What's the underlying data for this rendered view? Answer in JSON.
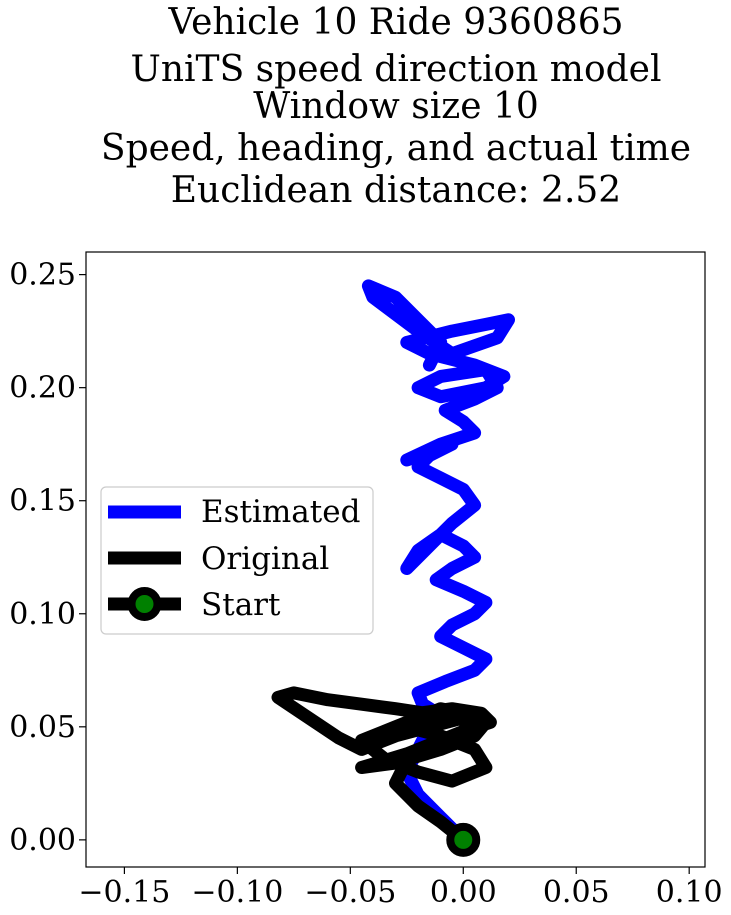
{
  "chart_data": {
    "type": "line",
    "title_lines": [
      "Vehicle 10 Ride 9360865",
      "UniTS speed direction model",
      "Window size 10",
      "Speed, heading, and actual time",
      "Euclidean distance: 2.52"
    ],
    "xlabel": "",
    "ylabel": "",
    "xlim": [
      -0.167,
      0.107
    ],
    "ylim": [
      -0.012,
      0.26
    ],
    "x_ticks": [
      -0.15,
      -0.1,
      -0.05,
      0.0,
      0.05,
      0.1
    ],
    "x_tick_labels": [
      "−0.15",
      "−0.10",
      "−0.05",
      "0.00",
      "0.05",
      "0.10"
    ],
    "y_ticks": [
      0.0,
      0.05,
      0.1,
      0.15,
      0.2,
      0.25
    ],
    "y_tick_labels": [
      "0.00",
      "0.05",
      "0.10",
      "0.15",
      "0.20",
      "0.25"
    ],
    "grid": false,
    "legend_position": "center-left",
    "legend": [
      {
        "label": "Estimated",
        "color": "#0000ff",
        "marker": "none"
      },
      {
        "label": "Original",
        "color": "#000000",
        "marker": "none"
      },
      {
        "label": "Start",
        "color": "#000000",
        "marker": "circle",
        "marker_face": "#008000"
      }
    ],
    "series": [
      {
        "name": "Estimated",
        "color": "#0000ff",
        "x": [
          0.0,
          -0.01,
          -0.02,
          -0.025,
          -0.02,
          -0.015,
          -0.01,
          -0.018,
          -0.02,
          -0.008,
          0.005,
          0.01,
          0.0,
          -0.01,
          -0.005,
          0.005,
          0.01,
          0.0,
          -0.012,
          -0.005,
          0.005,
          0.0,
          -0.01,
          -0.02,
          -0.025,
          -0.015,
          -0.005,
          0.005,
          0.0,
          -0.01,
          -0.02,
          -0.015,
          -0.005,
          -0.025,
          -0.01,
          0.005,
          0.0,
          -0.008,
          0.005,
          0.015,
          0.01,
          -0.01,
          -0.02,
          -0.01,
          0.01,
          0.018,
          0.005,
          -0.015,
          -0.025,
          -0.005,
          0.01,
          0.02,
          0.015,
          -0.005,
          -0.02,
          -0.04,
          -0.042,
          -0.03,
          -0.02,
          -0.01,
          -0.015
        ],
        "y": [
          0.0,
          0.01,
          0.02,
          0.03,
          0.04,
          0.05,
          0.055,
          0.06,
          0.065,
          0.07,
          0.075,
          0.08,
          0.085,
          0.09,
          0.095,
          0.1,
          0.105,
          0.11,
          0.115,
          0.12,
          0.125,
          0.13,
          0.135,
          0.128,
          0.12,
          0.13,
          0.14,
          0.148,
          0.155,
          0.16,
          0.165,
          0.17,
          0.175,
          0.168,
          0.175,
          0.18,
          0.185,
          0.19,
          0.195,
          0.2,
          0.208,
          0.205,
          0.2,
          0.196,
          0.2,
          0.205,
          0.21,
          0.215,
          0.22,
          0.225,
          0.228,
          0.23,
          0.222,
          0.215,
          0.225,
          0.24,
          0.245,
          0.24,
          0.23,
          0.22,
          0.21
        ]
      },
      {
        "name": "Original",
        "color": "#000000",
        "x": [
          0.0,
          -0.01,
          -0.02,
          -0.03,
          -0.025,
          -0.01,
          0.0,
          0.005,
          -0.01,
          -0.03,
          -0.045,
          -0.06,
          -0.075,
          -0.082,
          -0.07,
          -0.055,
          -0.045,
          -0.04,
          -0.03,
          -0.015,
          0.0,
          0.005,
          -0.01,
          -0.025,
          -0.045,
          -0.03,
          -0.01,
          0.005,
          0.01,
          0.0,
          -0.01,
          -0.02,
          -0.03,
          -0.045,
          -0.035,
          -0.02,
          -0.005,
          0.01,
          0.005,
          -0.01,
          -0.025,
          -0.02,
          -0.005,
          0.008,
          0.012,
          0.0
        ],
        "y": [
          0.0,
          0.008,
          0.015,
          0.025,
          0.035,
          0.042,
          0.048,
          0.052,
          0.055,
          0.058,
          0.06,
          0.062,
          0.065,
          0.063,
          0.055,
          0.045,
          0.04,
          0.042,
          0.046,
          0.05,
          0.054,
          0.05,
          0.044,
          0.038,
          0.032,
          0.034,
          0.04,
          0.046,
          0.052,
          0.056,
          0.058,
          0.054,
          0.05,
          0.044,
          0.036,
          0.03,
          0.026,
          0.032,
          0.04,
          0.046,
          0.05,
          0.056,
          0.058,
          0.056,
          0.052,
          0.048
        ]
      }
    ],
    "start_point": {
      "x": 0.0,
      "y": 0.0,
      "name": "Start"
    }
  }
}
